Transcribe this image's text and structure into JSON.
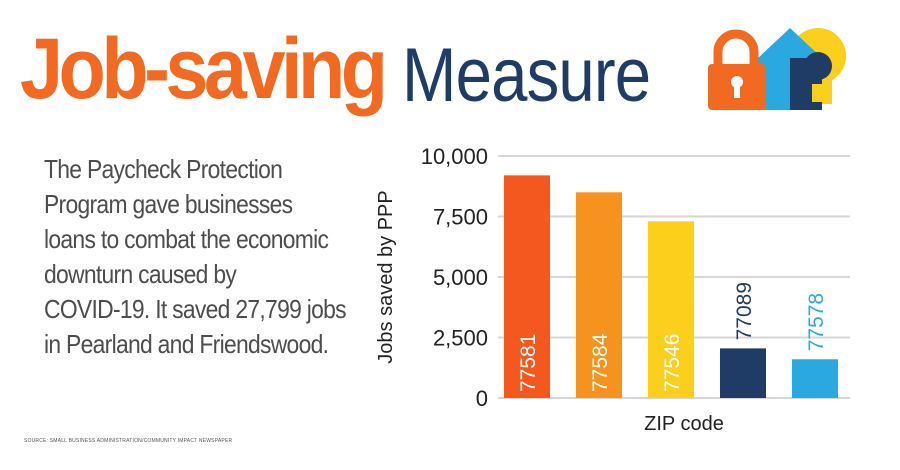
{
  "header": {
    "title_bold": "Job-saving",
    "title_light": "Measure",
    "logo_icon": "lock-house-lightbulb-icon"
  },
  "body": {
    "description_lines": [
      "The Paycheck Protection",
      "Program gave businesses",
      "loans to combat the economic",
      "downturn caused by",
      "COVID-19. It saved 27,799 jobs",
      "in Pearland and Friendswood."
    ]
  },
  "source": "SOURCE: SMALL BUSINESS ADMINISTRATION/COMMUNITY IMPACT NEWSPAPER",
  "colors": {
    "title_orange": "#f26a22",
    "title_navy": "#1f3c66",
    "bar_colors": [
      "#f4581e",
      "#f6921e",
      "#fbcf1c",
      "#1f3c66",
      "#29a9e0"
    ],
    "bar_label_colors": [
      "#ffffff",
      "#ffffff",
      "#ffffff",
      "#1f3c66",
      "#29a9e0"
    ],
    "grid": "#d6d6d6"
  },
  "chart_data": {
    "type": "bar",
    "categories": [
      "77581",
      "77584",
      "77546",
      "77089",
      "77578"
    ],
    "values": [
      9200,
      8500,
      7300,
      2050,
      1600
    ],
    "label_positions": [
      "inside",
      "inside",
      "inside",
      "above",
      "above"
    ],
    "xlabel": "ZIP code",
    "ylabel": "Jobs saved by PPP",
    "ylim": [
      0,
      10000
    ],
    "yticks": [
      0,
      2500,
      5000,
      7500,
      10000
    ],
    "ytick_labels": [
      "0",
      "2,500",
      "5,000",
      "7,500",
      "10,000"
    ],
    "grid": true,
    "legend": false
  }
}
